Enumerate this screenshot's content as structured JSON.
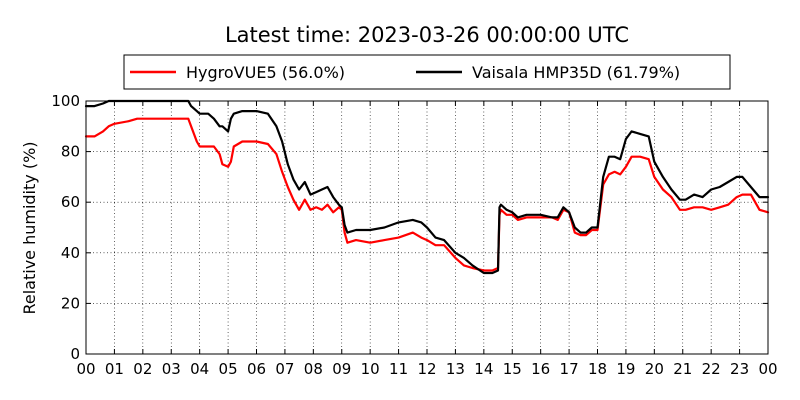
{
  "chart_data": {
    "type": "line",
    "title": "Latest time: 2023-03-26 00:00:00 UTC",
    "xlabel": "",
    "ylabel": "Relative humidity (%)",
    "xlim": [
      0,
      24
    ],
    "ylim": [
      0,
      100
    ],
    "x_tick_labels": [
      "00",
      "01",
      "02",
      "03",
      "04",
      "05",
      "06",
      "07",
      "08",
      "09",
      "10",
      "11",
      "12",
      "13",
      "14",
      "15",
      "16",
      "17",
      "18",
      "19",
      "20",
      "21",
      "22",
      "23",
      "00"
    ],
    "y_tick_labels": [
      "0",
      "20",
      "40",
      "60",
      "80",
      "100"
    ],
    "grid": true,
    "legend_position": "top",
    "series": [
      {
        "name": "HygroVUE5 (56.0%)",
        "color": "#ff0000",
        "x": [
          0.0,
          0.3,
          0.6,
          0.8,
          1.0,
          1.5,
          1.8,
          2.0,
          2.5,
          3.0,
          3.5,
          3.6,
          3.7,
          3.9,
          4.0,
          4.3,
          4.5,
          4.7,
          4.8,
          5.0,
          5.1,
          5.2,
          5.5,
          6.0,
          6.4,
          6.7,
          6.9,
          7.1,
          7.3,
          7.5,
          7.7,
          7.9,
          8.1,
          8.3,
          8.5,
          8.7,
          8.9,
          9.0,
          9.1,
          9.2,
          9.5,
          10.0,
          10.5,
          11.0,
          11.5,
          11.8,
          12.0,
          12.3,
          12.6,
          13.0,
          13.3,
          13.6,
          14.0,
          14.3,
          14.5,
          14.55,
          14.6,
          14.8,
          15.0,
          15.2,
          15.5,
          16.0,
          16.4,
          16.6,
          16.8,
          17.0,
          17.2,
          17.4,
          17.6,
          17.8,
          18.0,
          18.2,
          18.4,
          18.6,
          18.8,
          19.0,
          19.2,
          19.5,
          19.8,
          20.0,
          20.3,
          20.6,
          20.9,
          21.1,
          21.4,
          21.7,
          22.0,
          22.3,
          22.6,
          22.9,
          23.1,
          23.4,
          23.7,
          24.0
        ],
        "y": [
          86,
          86,
          88,
          90,
          91,
          92,
          93,
          93,
          93,
          93,
          93,
          93,
          90,
          84,
          82,
          82,
          82,
          79,
          75,
          74,
          76,
          82,
          84,
          84,
          83,
          79,
          72,
          66,
          61,
          57,
          61,
          57,
          58,
          57,
          59,
          56,
          58,
          57,
          48,
          44,
          45,
          44,
          45,
          46,
          48,
          46,
          45,
          43,
          43,
          38,
          35,
          34,
          33,
          33,
          34,
          55,
          57,
          55,
          55,
          53,
          54,
          54,
          54,
          53,
          57,
          56,
          48,
          47,
          47,
          49,
          49,
          67,
          71,
          72,
          71,
          74,
          78,
          78,
          77,
          70,
          65,
          62,
          57,
          57,
          58,
          58,
          57,
          58,
          59,
          62,
          63,
          63,
          57,
          56
        ]
      },
      {
        "name": "Vaisala HMP35D (61.79%)",
        "color": "#000000",
        "x": [
          0.0,
          0.3,
          0.6,
          0.8,
          1.0,
          2.0,
          3.0,
          3.6,
          3.7,
          3.9,
          4.0,
          4.3,
          4.5,
          4.7,
          4.8,
          5.0,
          5.1,
          5.2,
          5.5,
          6.0,
          6.4,
          6.7,
          6.9,
          7.1,
          7.3,
          7.5,
          7.7,
          7.9,
          8.1,
          8.3,
          8.5,
          8.7,
          8.9,
          9.0,
          9.1,
          9.2,
          9.5,
          10.0,
          10.5,
          11.0,
          11.5,
          11.8,
          12.0,
          12.3,
          12.6,
          13.0,
          13.3,
          13.6,
          14.0,
          14.3,
          14.5,
          14.55,
          14.6,
          14.8,
          15.0,
          15.2,
          15.5,
          16.0,
          16.4,
          16.6,
          16.8,
          17.0,
          17.2,
          17.4,
          17.6,
          17.8,
          18.0,
          18.2,
          18.4,
          18.6,
          18.8,
          19.0,
          19.2,
          19.5,
          19.8,
          20.0,
          20.3,
          20.6,
          20.9,
          21.1,
          21.4,
          21.7,
          22.0,
          22.3,
          22.6,
          22.9,
          23.1,
          23.4,
          23.7,
          24.0
        ],
        "y": [
          98,
          98,
          99,
          100,
          100,
          100,
          100,
          100,
          98,
          96,
          95,
          95,
          93,
          90,
          90,
          88,
          93,
          95,
          96,
          96,
          95,
          90,
          84,
          75,
          69,
          65,
          68,
          63,
          64,
          65,
          66,
          62,
          59,
          58,
          51,
          48,
          49,
          49,
          50,
          52,
          53,
          52,
          50,
          46,
          45,
          40,
          38,
          35,
          32,
          32,
          33,
          58,
          59,
          57,
          56,
          54,
          55,
          55,
          54,
          54,
          58,
          56,
          50,
          48,
          48,
          50,
          50,
          70,
          78,
          78,
          77,
          85,
          88,
          87,
          86,
          76,
          70,
          65,
          61,
          61,
          63,
          62,
          65,
          66,
          68,
          70,
          70,
          66,
          62,
          62
        ]
      }
    ]
  }
}
